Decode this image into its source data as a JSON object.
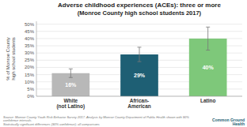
{
  "chart_data": {
    "type": "bar",
    "title": "Adverse childhood experiences (ACEs): three or more",
    "subtitle": "(Monroe County high school students 2017)",
    "categories": [
      "White\n(not Latino)",
      "African-\nAmerican",
      "Latino"
    ],
    "values": [
      16,
      29,
      40
    ],
    "value_labels": [
      "16%",
      "29%",
      "40%"
    ],
    "errors": [
      3,
      5,
      8
    ],
    "colors": [
      "#b8b8b8",
      "#1e5f74",
      "#7ec87a"
    ],
    "ylabel": "% of Monroe County\nhigh school students",
    "ylim": [
      0,
      52
    ],
    "yticks": [
      {
        "value": 0,
        "label": "0%"
      },
      {
        "value": 5,
        "label": "5%"
      },
      {
        "value": 10,
        "label": "10%"
      },
      {
        "value": 15,
        "label": "15%"
      },
      {
        "value": 20,
        "label": "20%"
      },
      {
        "value": 25,
        "label": "25%"
      },
      {
        "value": 30,
        "label": "30%"
      },
      {
        "value": 35,
        "label": "35%"
      },
      {
        "value": 40,
        "label": "40%"
      },
      {
        "value": 45,
        "label": "45%"
      },
      {
        "value": 50,
        "label": "50%"
      }
    ],
    "grid": true,
    "data_labels": true,
    "annotations": [
      "Source: Monroe County Youth Risk Behavior Survey 2017. Analysis by Monroe County Department of Public Health shown with 90% confidence intervals.",
      "Statistically significant differences (90% confidence); all comparisons",
      "Common Ground\nHealth"
    ]
  }
}
